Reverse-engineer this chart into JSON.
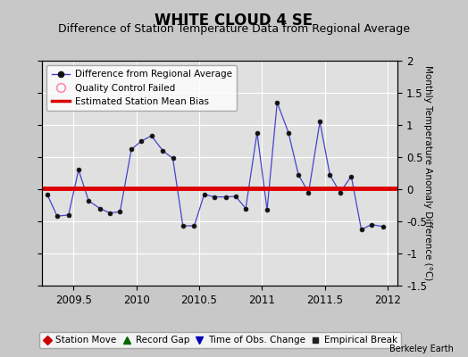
{
  "title": "WHITE CLOUD 4 SE",
  "subtitle": "Difference of Station Temperature Data from Regional Average",
  "ylabel": "Monthly Temperature Anomaly Difference (°C)",
  "credit": "Berkeley Earth",
  "xlim": [
    2009.25,
    2012.08
  ],
  "ylim": [
    -1.5,
    2.0
  ],
  "yticks": [
    -1.5,
    -1.0,
    -0.5,
    0.0,
    0.5,
    1.0,
    1.5,
    2.0
  ],
  "xticks": [
    2009.5,
    2010.0,
    2010.5,
    2011.0,
    2011.5,
    2012.0
  ],
  "xticklabels": [
    "2009.5",
    "2010",
    "2010.5",
    "2011",
    "2011.5",
    "2012"
  ],
  "bias_line": 0.02,
  "bias_color": "#dd0000",
  "bias_linewidth": 3.5,
  "line_color": "#4444cc",
  "marker_color": "#111111",
  "marker_size": 3.5,
  "background_color": "#e0e0e0",
  "grid_color": "#ffffff",
  "title_fontsize": 12,
  "subtitle_fontsize": 9,
  "times": [
    2009.29,
    2009.37,
    2009.46,
    2009.54,
    2009.62,
    2009.71,
    2009.79,
    2009.87,
    2009.96,
    2010.04,
    2010.12,
    2010.21,
    2010.29,
    2010.37,
    2010.46,
    2010.54,
    2010.62,
    2010.71,
    2010.79,
    2010.87,
    2010.96,
    2011.04,
    2011.12,
    2011.21,
    2011.29,
    2011.37,
    2011.46,
    2011.54,
    2011.62,
    2011.71,
    2011.79,
    2011.87,
    2011.96
  ],
  "values": [
    -0.08,
    -0.42,
    -0.4,
    0.3,
    -0.18,
    -0.3,
    -0.37,
    -0.35,
    0.62,
    0.75,
    0.83,
    0.6,
    0.48,
    -0.57,
    -0.57,
    -0.08,
    -0.12,
    -0.12,
    -0.11,
    -0.3,
    0.88,
    -0.32,
    1.35,
    0.88,
    0.22,
    -0.05,
    1.05,
    0.22,
    -0.05,
    0.2,
    -0.63,
    -0.55,
    -0.58
  ]
}
